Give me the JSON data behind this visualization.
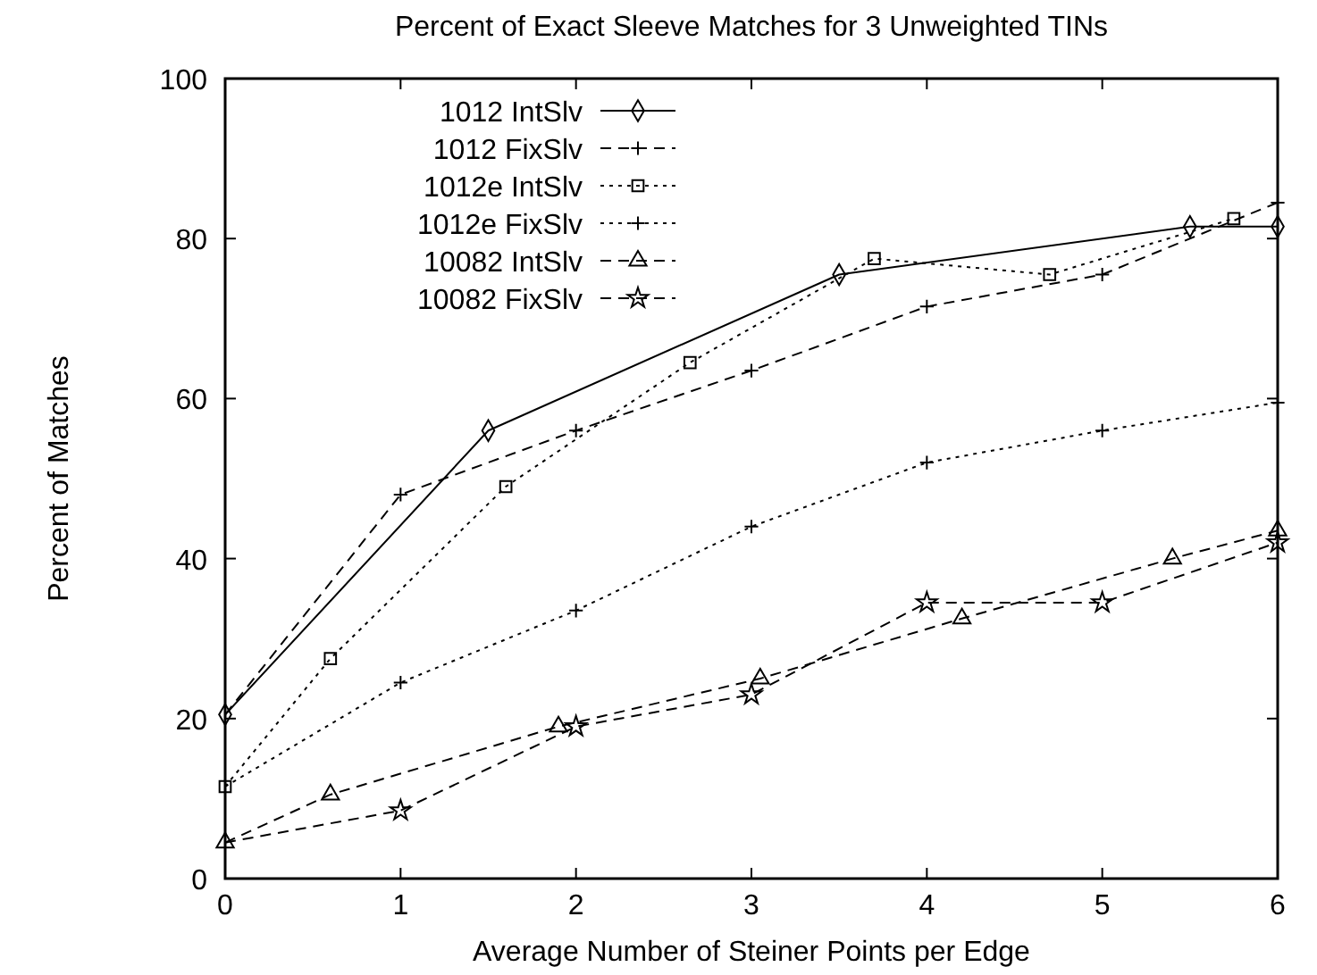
{
  "chart_data": {
    "type": "line",
    "title": "Percent of Exact Sleeve Matches for 3 Unweighted TINs",
    "xlabel": "Average Number of Steiner Points per Edge",
    "ylabel": "Percent of Matches",
    "xlim": [
      0,
      6
    ],
    "xticks": [
      0,
      1,
      2,
      3,
      4,
      5,
      6
    ],
    "ylim": [
      0,
      100
    ],
    "yticks": [
      0,
      20,
      40,
      60,
      80,
      100
    ],
    "legend": "top left",
    "grid": false,
    "series": [
      {
        "name": "1012 IntSlv",
        "color": "#000000",
        "marker": "diamond",
        "line_style": "solid",
        "x": [
          0,
          1.5,
          3.5,
          5.5,
          6
        ],
        "values": [
          20.5,
          56,
          75.5,
          81.5,
          81.5
        ]
      },
      {
        "name": "1012 FixSlv",
        "color": "#000000",
        "marker": "cross",
        "line_style": "dashed",
        "x": [
          0,
          1,
          2,
          3,
          4,
          5,
          6
        ],
        "values": [
          20.5,
          48,
          56,
          63.5,
          71.5,
          75.5,
          84.5
        ]
      },
      {
        "name": "1012e IntSlv",
        "color": "#000000",
        "marker": "square",
        "line_style": "dotted",
        "x": [
          0,
          0.6,
          1.6,
          2.65,
          3.7,
          4.7,
          5.75
        ],
        "values": [
          11.5,
          27.5,
          49,
          64.5,
          77.5,
          75.5,
          82.5
        ]
      },
      {
        "name": "1012e FixSlv",
        "color": "#000000",
        "marker": "cross",
        "line_style": "dotted",
        "x": [
          0,
          1,
          2,
          3,
          4,
          5,
          6
        ],
        "values": [
          11.5,
          24.5,
          33.5,
          44,
          52,
          56,
          59.5
        ]
      },
      {
        "name": "10082 IntSlv",
        "color": "#000000",
        "marker": "triangle",
        "line_style": "dashed",
        "x": [
          0,
          0.6,
          1.9,
          3.05,
          4.2,
          5.4,
          6
        ],
        "values": [
          4.5,
          10.5,
          19,
          25,
          32.5,
          40,
          43.5
        ]
      },
      {
        "name": "10082 FixSlv",
        "color": "#000000",
        "marker": "star",
        "line_style": "dashed",
        "x": [
          0,
          1,
          2,
          3,
          4,
          5,
          6
        ],
        "values": [
          4.5,
          8.5,
          19,
          23,
          34.5,
          34.5,
          42
        ]
      }
    ]
  }
}
